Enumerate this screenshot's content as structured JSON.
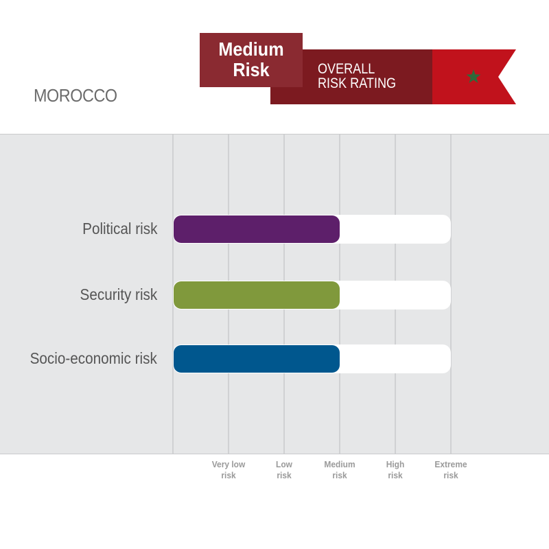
{
  "header": {
    "country": "MOROCCO",
    "overall_level_line1": "Medium",
    "overall_level_line2": "Risk",
    "rating_label_line1": "OVERALL",
    "rating_label_line2": "RISK RATING",
    "flag_icon": "morocco-flag-star-icon",
    "colors": {
      "badge": "#8a2a31",
      "ribbon": "#7c1a20",
      "ribbon_shadow": "#3d0b0e",
      "flag_red": "#c1121c",
      "flag_star": "#2e6a3a"
    }
  },
  "chart_data": {
    "type": "bar",
    "orientation": "horizontal",
    "categories": [
      "Political risk",
      "Security risk",
      "Socio-economic risk"
    ],
    "scale_ticks": [
      {
        "line1": "Very low",
        "line2": "risk"
      },
      {
        "line1": "Low",
        "line2": "risk"
      },
      {
        "line1": "Medium",
        "line2": "risk"
      },
      {
        "line1": "High",
        "line2": "risk"
      },
      {
        "line1": "Extreme",
        "line2": "risk"
      }
    ],
    "xlim": [
      0,
      5
    ],
    "values": [
      3,
      3,
      3
    ],
    "colors": [
      "#5d1f6a",
      "#80993c",
      "#00578e"
    ],
    "track_color": "#ffffff",
    "grid": true
  }
}
